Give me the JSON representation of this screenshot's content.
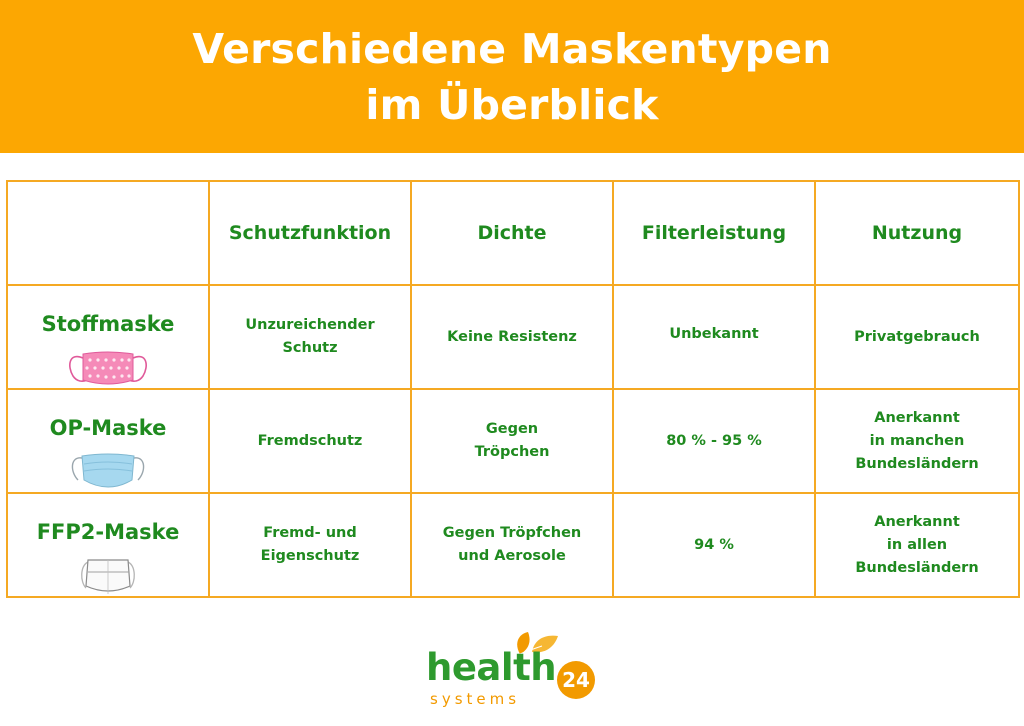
{
  "banner": {
    "line1": "Verschiedene Maskentypen",
    "line2": "im Überblick"
  },
  "table": {
    "columns": [
      "",
      "Schutzfunktion",
      "Dichte",
      "Filterleistung",
      "Nutzung"
    ],
    "rows": [
      {
        "name": "Stoffmaske",
        "icon": "cloth-mask-icon",
        "schutzfunktion": [
          "Unzureichender",
          "Schutz"
        ],
        "dichte": [
          "Keine Resistenz"
        ],
        "filterleistung": [
          "Unbekannt"
        ],
        "nutzung": [
          "Privatgebrauch"
        ]
      },
      {
        "name": "OP-Maske",
        "icon": "surgical-mask-icon",
        "schutzfunktion": [
          "Fremdschutz"
        ],
        "dichte": [
          "Gegen",
          "Tröpchen"
        ],
        "filterleistung": [
          "80 % - 95 %"
        ],
        "nutzung": [
          "Anerkannt",
          "in manchen",
          "Bundesländern"
        ]
      },
      {
        "name": "FFP2-Maske",
        "icon": "ffp2-mask-icon",
        "schutzfunktion": [
          "Fremd- und",
          "Eigenschutz"
        ],
        "dichte": [
          "Gegen Tröpfchen",
          "und Aerosole"
        ],
        "filterleistung": [
          "94 %"
        ],
        "nutzung": [
          "Anerkannt",
          "in allen",
          "Bundesländern"
        ]
      }
    ]
  },
  "logo": {
    "word": "health",
    "sub": "systems",
    "badge": "24"
  },
  "colors": {
    "accent": "#fca702",
    "text_green": "#1f8a1f",
    "border": "#f5a923"
  }
}
